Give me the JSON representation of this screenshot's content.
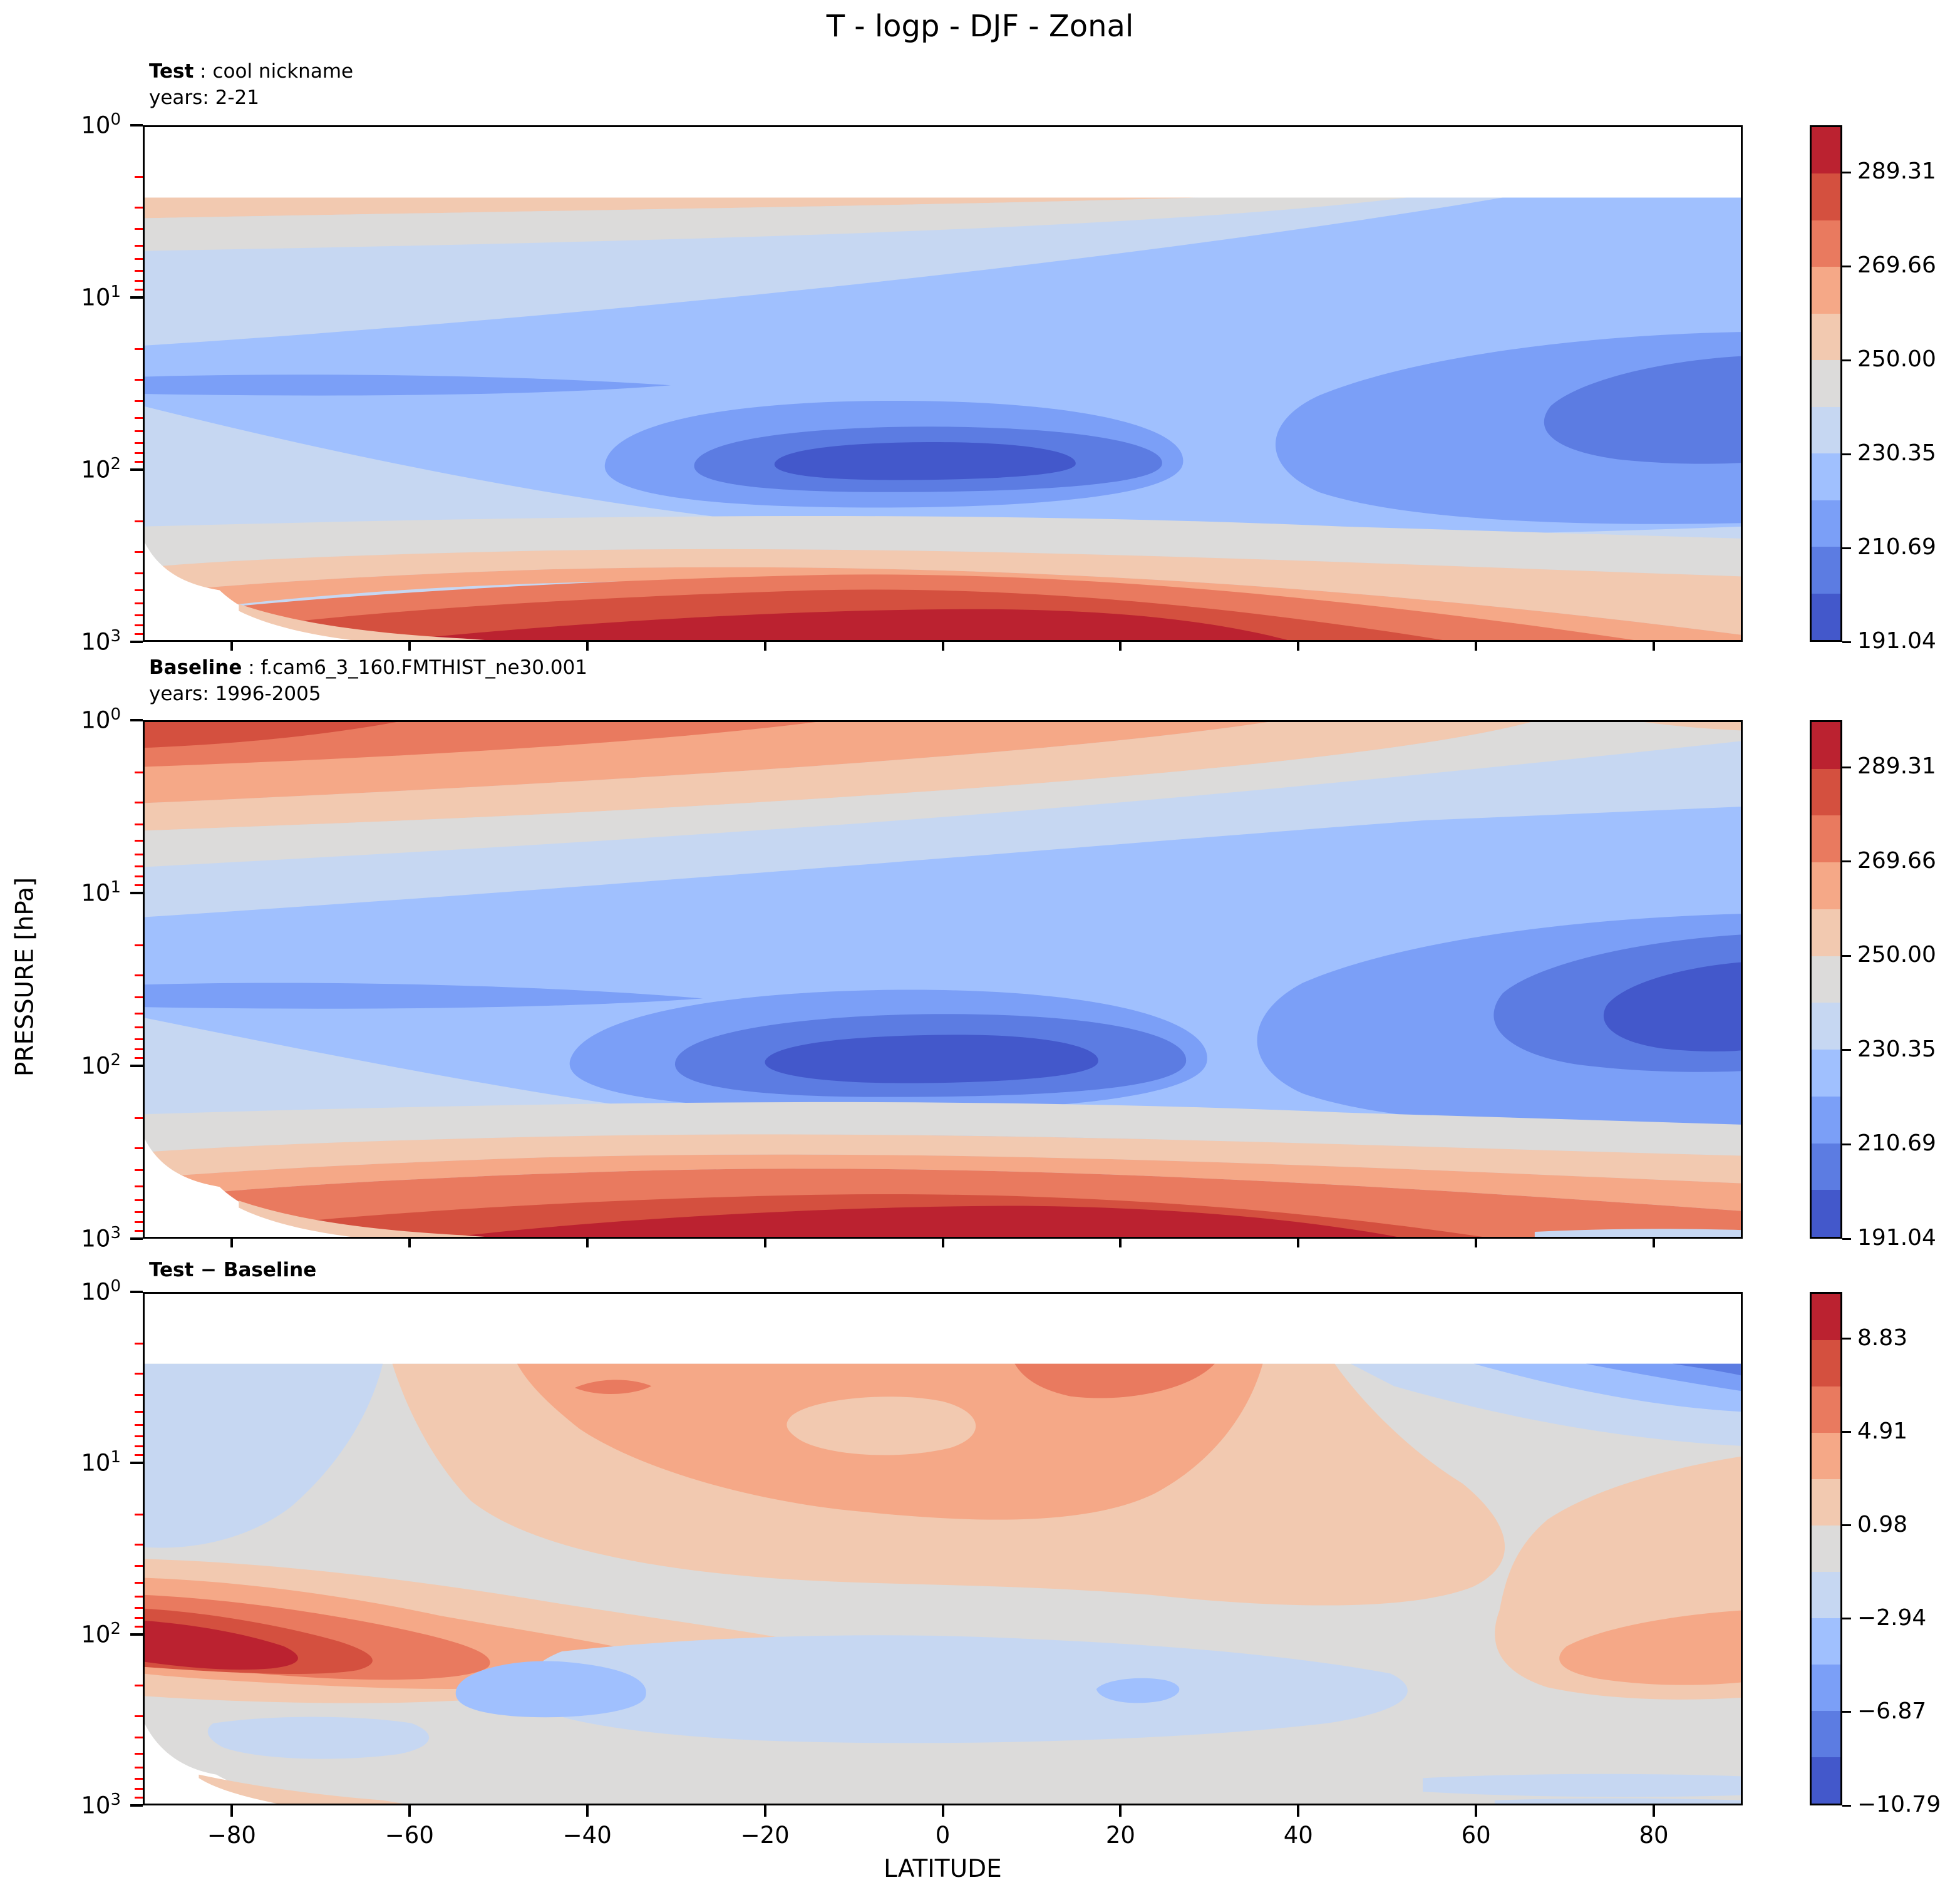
{
  "title": "T - logp - DJF - Zonal",
  "axes": {
    "xlabel": "LATITUDE",
    "ylabel": "PRESSURE [hPa]",
    "x_tick_labels": [
      "−80",
      "−60",
      "−40",
      "−20",
      "0",
      "20",
      "40",
      "60",
      "80"
    ],
    "x_tick_values": [
      -80,
      -60,
      -40,
      -20,
      0,
      20,
      40,
      60,
      80
    ],
    "x_range": [
      -90,
      90
    ],
    "y_tick_base": "10",
    "y_tick_exponents": [
      0,
      1,
      2,
      3
    ],
    "y_scale": "log",
    "minor_tick_color": "#ff0000",
    "axis_color": "#000000"
  },
  "palette": {
    "c1": "#4358cb",
    "c2": "#5c7ce2",
    "c3": "#7b9ff7",
    "c4": "#a0c0fe",
    "c5": "#c6d7f2",
    "c6": "#dcdbda",
    "c7": "#f2c9b0",
    "c8": "#f5a887",
    "c9": "#e97a5f",
    "c10": "#d4503f",
    "c11": "#bb2230",
    "background": "#ffffff"
  },
  "panels": [
    {
      "id": "test",
      "title_bold": "Test",
      "title_sep": " : ",
      "title_value": "cool nickname",
      "subtitle": "years: 2-21"
    },
    {
      "id": "baseline",
      "title_bold": "Baseline",
      "title_sep": " : ",
      "title_value": "f.cam6_3_160.FMTHIST_ne30.001",
      "subtitle": "years: 1996-2005"
    },
    {
      "id": "diff",
      "title_bold": "Test − Baseline",
      "title_sep": "",
      "title_value": "",
      "subtitle": ""
    }
  ],
  "chart_data": {
    "type": "heatmap",
    "subtype": "filled-contour",
    "title": "T - logp - DJF - Zonal",
    "xlabel": "LATITUDE",
    "ylabel": "PRESSURE [hPa]",
    "x_range_deg": [
      -90,
      90
    ],
    "y_range_hpa": [
      1,
      1000
    ],
    "y_scale": "log",
    "colormap": "coolwarm",
    "n_color_levels": 11,
    "panels": [
      {
        "id": "test",
        "label": "Test",
        "case_name": "cool nickname",
        "years": "2-21",
        "units": "K",
        "level_boundaries": [
          191.04,
          200.87,
          210.69,
          220.52,
          230.35,
          240.17,
          250.0,
          259.83,
          269.66,
          279.48,
          289.31,
          299.14
        ],
        "colorbar": {
          "tick_labels": [
            "289.31",
            "269.66",
            "250.00",
            "230.35",
            "210.69",
            "191.04"
          ],
          "tick_fractions_from_top": [
            0.0909,
            0.2727,
            0.4545,
            0.7273,
            0.8182,
            1.0
          ],
          "colors_top_to_bottom": [
            "#bb2230",
            "#d4503f",
            "#e97a5f",
            "#f5a887",
            "#f2c9b0",
            "#dcdbda",
            "#c6d7f2",
            "#a0c0fe",
            "#7b9ff7",
            "#5c7ce2",
            "#4358cb"
          ]
        },
        "data_top_hpa": 2.6,
        "features": [
          {
            "name": "tropical_tropopause_cold_min",
            "lat": [
              -30,
              30
            ],
            "p_hpa": [
              70,
              130
            ],
            "value_K": "≈191–201"
          },
          {
            "name": "nh_polar_lower_strat_cold",
            "lat": [
              60,
              90
            ],
            "p_hpa": [
              15,
              60
            ],
            "value_K": "≈201–211"
          },
          {
            "name": "sh_midlat_lower_strat_cold_band",
            "lat": [
              -90,
              -35
            ],
            "p_hpa": [
              28,
              38
            ],
            "value_K": "≈211–221"
          },
          {
            "name": "surface_warm_max",
            "lat": [
              -55,
              25
            ],
            "p_hpa": [
              850,
              1000
            ],
            "value_K": "≈289–299"
          },
          {
            "name": "warm_band_at_data_top",
            "lat": [
              -90,
              25
            ],
            "p_hpa": [
              2.6,
              3.5
            ],
            "value_K": "≈250–260"
          },
          {
            "name": "antarctic_terrain_gap_white",
            "lat": [
              -90,
              -55
            ],
            "p_hpa": [
              700,
              1000
            ]
          }
        ]
      },
      {
        "id": "baseline",
        "label": "Baseline",
        "case_name": "f.cam6_3_160.FMTHIST_ne30.001",
        "years": "1996-2005",
        "units": "K",
        "level_boundaries": [
          191.04,
          200.87,
          210.69,
          220.52,
          230.35,
          240.17,
          250.0,
          259.83,
          269.66,
          279.48,
          289.31,
          299.14
        ],
        "colorbar": {
          "tick_labels": [
            "289.31",
            "269.66",
            "250.00",
            "230.35",
            "210.69",
            "191.04"
          ],
          "tick_fractions_from_top": [
            0.0909,
            0.2727,
            0.4545,
            0.7273,
            0.8182,
            1.0
          ],
          "colors_top_to_bottom": [
            "#bb2230",
            "#d4503f",
            "#e97a5f",
            "#f5a887",
            "#f2c9b0",
            "#dcdbda",
            "#c6d7f2",
            "#a0c0fe",
            "#7b9ff7",
            "#5c7ce2",
            "#4358cb"
          ]
        },
        "data_top_hpa": 1.0,
        "features": [
          {
            "name": "sh_polar_stratopause_warm",
            "lat": [
              -90,
              -60
            ],
            "p_hpa": [
              1,
              2
            ],
            "value_K": "≈279–289"
          },
          {
            "name": "upper_strat_warm_band",
            "lat": [
              -90,
              40
            ],
            "p_hpa": [
              1,
              5
            ],
            "value_K": "≈260–279"
          },
          {
            "name": "tropical_tropopause_cold_min",
            "lat": [
              -25,
              25
            ],
            "p_hpa": [
              70,
              140
            ],
            "value_K": "≈191–201"
          },
          {
            "name": "nh_polar_vortex_cold_core",
            "lat": [
              70,
              90
            ],
            "p_hpa": [
              20,
              70
            ],
            "value_K": "≈191–201"
          },
          {
            "name": "surface_warm_max",
            "lat": [
              -45,
              35
            ],
            "p_hpa": [
              850,
              1000
            ],
            "value_K": "≈289–299"
          },
          {
            "name": "antarctic_terrain_gap_white",
            "lat": [
              -90,
              -55
            ],
            "p_hpa": [
              700,
              1000
            ]
          }
        ]
      },
      {
        "id": "diff",
        "label": "Test − Baseline",
        "units": "K",
        "level_boundaries": [
          -10.79,
          -8.83,
          -6.87,
          -4.91,
          -2.94,
          -0.98,
          0.98,
          2.94,
          4.91,
          6.87,
          8.83,
          10.79
        ],
        "colorbar": {
          "tick_labels": [
            "8.83",
            "4.91",
            "0.98",
            "−2.94",
            "−6.87",
            "−10.79"
          ],
          "tick_fractions_from_top": [
            0.0909,
            0.2727,
            0.4545,
            0.7273,
            0.8182,
            1.0
          ],
          "colors_top_to_bottom": [
            "#bb2230",
            "#d4503f",
            "#e97a5f",
            "#f5a887",
            "#f2c9b0",
            "#dcdbda",
            "#c6d7f2",
            "#a0c0fe",
            "#7b9ff7",
            "#5c7ce2",
            "#4358cb"
          ]
        },
        "data_top_hpa": 2.6,
        "features": [
          {
            "name": "sh_polar_utls_warm_bias_max",
            "lat": [
              -90,
              -72
            ],
            "p_hpa": [
              110,
              200
            ],
            "value_K": "≈+9 to +10.8"
          },
          {
            "name": "broad_strat_warm_bias",
            "lat": [
              -50,
              40
            ],
            "p_hpa": [
              3,
              60
            ],
            "value_K": "≈+1 to +5"
          },
          {
            "name": "small_warm_spot",
            "lat": [
              -38,
              -34
            ],
            "p_hpa": [
              3.5,
              4.5
            ],
            "value_K": "≈+5"
          },
          {
            "name": "nh_polar_mid_trop_warm_bias",
            "lat": [
              67,
              90
            ],
            "p_hpa": [
              120,
              400
            ],
            "value_K": "≈+3 to +5"
          },
          {
            "name": "upper_trop_cool_bias",
            "lat": [
              -50,
              55
            ],
            "p_hpa": [
              150,
              500
            ],
            "value_K": "≈−1 to −3"
          },
          {
            "name": "nh_upper_strat_cool_bias",
            "lat": [
              55,
              90
            ],
            "p_hpa": [
              2.6,
              5
            ],
            "value_K": "≈−3 to −11"
          },
          {
            "name": "sh_polar_strat_cool_bias",
            "lat": [
              -90,
              -62
            ],
            "p_hpa": [
              2.6,
              40
            ],
            "value_K": "≈−1 to −3"
          },
          {
            "name": "mostly_neutral_troposphere",
            "lat": [
              -60,
              90
            ],
            "p_hpa": [
              500,
              1000
            ],
            "value_K": "≈−1 to +1"
          }
        ]
      }
    ]
  }
}
